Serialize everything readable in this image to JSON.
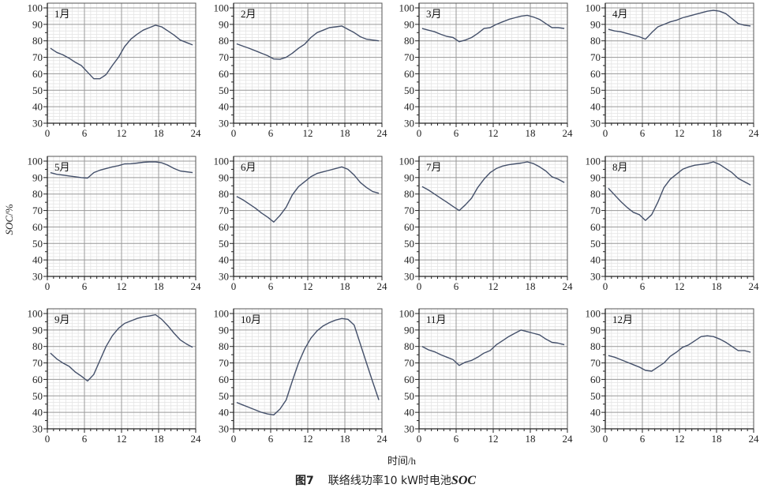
{
  "figure": {
    "xlabel": "时间/h",
    "ylabel_italic": "SOC",
    "ylabel_unit": "/%",
    "caption_number": "图7",
    "caption_text": "联络线功率10 kW时电池",
    "caption_soc": "SOC",
    "line_color": "#44506a"
  },
  "chart_data": [
    {
      "type": "line",
      "title": "1月",
      "xlim": [
        0,
        24
      ],
      "ylim": [
        30,
        100
      ],
      "xticks": [
        0,
        6,
        12,
        18,
        24
      ],
      "yticks": [
        30,
        40,
        50,
        60,
        70,
        80,
        90,
        100
      ],
      "grid": true,
      "x": [
        0.5,
        1.5,
        2.5,
        3.5,
        4.5,
        5.5,
        6.5,
        7.5,
        8.5,
        9.5,
        10.5,
        11.5,
        12.5,
        13.5,
        14.5,
        15.5,
        16.5,
        17.5,
        18.5,
        19.5,
        20.5,
        21.5,
        22.5,
        23.5
      ],
      "values": [
        75.5,
        73,
        71.5,
        69.5,
        67,
        65,
        61,
        57,
        57,
        59.5,
        65,
        70,
        76.5,
        81,
        84,
        86.5,
        88,
        89.5,
        88.5,
        86,
        83.5,
        80.5,
        79,
        77.5
      ]
    },
    {
      "type": "line",
      "title": "2月",
      "xlim": [
        0,
        24
      ],
      "ylim": [
        30,
        100
      ],
      "xticks": [
        0,
        6,
        12,
        18,
        24
      ],
      "yticks": [
        30,
        40,
        50,
        60,
        70,
        80,
        90,
        100
      ],
      "grid": true,
      "x": [
        0.5,
        1.5,
        2.5,
        3.5,
        4.5,
        5.5,
        6.5,
        7.5,
        8.5,
        9.5,
        10.5,
        11.5,
        12.5,
        13.5,
        14.5,
        15.5,
        16.5,
        17.5,
        18.5,
        19.5,
        20.5,
        21.5,
        22.5,
        23.5
      ],
      "values": [
        78.2,
        76.8,
        75.5,
        74,
        72.5,
        71,
        69,
        68.8,
        70,
        72.5,
        75.5,
        78,
        82,
        85,
        86.5,
        88,
        88.5,
        89,
        87,
        85,
        82.5,
        81,
        80.5,
        80
      ]
    },
    {
      "type": "line",
      "title": "3月",
      "xlim": [
        0,
        24
      ],
      "ylim": [
        30,
        100
      ],
      "xticks": [
        0,
        6,
        12,
        18,
        24
      ],
      "yticks": [
        30,
        40,
        50,
        60,
        70,
        80,
        90,
        100
      ],
      "grid": true,
      "x": [
        0.5,
        1.5,
        2.5,
        3.5,
        4.5,
        5.5,
        6.5,
        7.5,
        8.5,
        9.5,
        10.5,
        11.5,
        12.5,
        13.5,
        14.5,
        15.5,
        16.5,
        17.5,
        18.5,
        19.5,
        20.5,
        21.5,
        22.5,
        23.5
      ],
      "values": [
        87.5,
        86.5,
        85.5,
        84,
        82.7,
        82,
        79.5,
        80.5,
        82,
        84.5,
        87.5,
        88,
        90,
        91.5,
        93,
        94,
        95,
        95.5,
        94.5,
        93,
        90.5,
        88,
        88,
        87.5
      ]
    },
    {
      "type": "line",
      "title": "4月",
      "xlim": [
        0,
        24
      ],
      "ylim": [
        30,
        100
      ],
      "xticks": [
        0,
        6,
        12,
        18,
        24
      ],
      "yticks": [
        30,
        40,
        50,
        60,
        70,
        80,
        90,
        100
      ],
      "grid": true,
      "x": [
        0.5,
        1.5,
        2.5,
        3.5,
        4.5,
        5.5,
        6.5,
        7.5,
        8.5,
        9.5,
        10.5,
        11.5,
        12.5,
        13.5,
        14.5,
        15.5,
        16.5,
        17.5,
        18.5,
        19.5,
        20.5,
        21.5,
        22.5,
        23.5
      ],
      "values": [
        87,
        86,
        85.5,
        84.5,
        83.5,
        82.5,
        81,
        85,
        88.5,
        90,
        91.5,
        92.5,
        94,
        95,
        96,
        97,
        98,
        98.5,
        98,
        96.5,
        93.5,
        90.5,
        89.5,
        89
      ]
    },
    {
      "type": "line",
      "title": "5月",
      "xlim": [
        0,
        24
      ],
      "ylim": [
        30,
        100
      ],
      "xticks": [
        0,
        6,
        12,
        18,
        24
      ],
      "yticks": [
        30,
        40,
        50,
        60,
        70,
        80,
        90,
        100
      ],
      "grid": true,
      "x": [
        0.5,
        1.5,
        2.5,
        3.5,
        4.5,
        5.5,
        6.5,
        7.5,
        8.5,
        9.5,
        10.5,
        11.5,
        12.5,
        13.5,
        14.5,
        15.5,
        16.5,
        17.5,
        18.5,
        19.5,
        20.5,
        21.5,
        22.5,
        23.5
      ],
      "values": [
        93,
        92,
        91.5,
        91,
        90.5,
        90,
        89.7,
        93,
        94.5,
        95.5,
        96.5,
        97.2,
        98.3,
        98.4,
        98.8,
        99.3,
        99.5,
        99.5,
        99,
        97.5,
        95.5,
        94,
        93.5,
        93
      ]
    },
    {
      "type": "line",
      "title": "6月",
      "xlim": [
        0,
        24
      ],
      "ylim": [
        30,
        100
      ],
      "xticks": [
        0,
        6,
        12,
        18,
        24
      ],
      "yticks": [
        30,
        40,
        50,
        60,
        70,
        80,
        90,
        100
      ],
      "grid": true,
      "x": [
        0.5,
        1.5,
        2.5,
        3.5,
        4.5,
        5.5,
        6.5,
        7.5,
        8.5,
        9.5,
        10.5,
        11.5,
        12.5,
        13.5,
        14.5,
        15.5,
        16.5,
        17.5,
        18.5,
        19.5,
        20.5,
        21.5,
        22.5,
        23.5
      ],
      "values": [
        78.5,
        76.5,
        74,
        71.5,
        68.5,
        66,
        63,
        67,
        72,
        79.5,
        84.5,
        87.5,
        90.5,
        92.5,
        93.5,
        94.5,
        95.5,
        96.5,
        95,
        91.5,
        87,
        84,
        81.5,
        80.5
      ]
    },
    {
      "type": "line",
      "title": "7月",
      "xlim": [
        0,
        24
      ],
      "ylim": [
        30,
        100
      ],
      "xticks": [
        0,
        6,
        12,
        18,
        24
      ],
      "yticks": [
        30,
        40,
        50,
        60,
        70,
        80,
        90,
        100
      ],
      "grid": true,
      "x": [
        0.5,
        1.5,
        2.5,
        3.5,
        4.5,
        5.5,
        6.5,
        7.5,
        8.5,
        9.5,
        10.5,
        11.5,
        12.5,
        13.5,
        14.5,
        15.5,
        16.5,
        17.5,
        18.5,
        19.5,
        20.5,
        21.5,
        22.5,
        23.5
      ],
      "values": [
        84.5,
        82.5,
        80,
        77.5,
        75,
        72.5,
        70,
        73.5,
        77.5,
        84,
        89,
        93,
        95.5,
        97,
        97.8,
        98.3,
        98.8,
        99.5,
        98.5,
        96.5,
        94,
        90.5,
        89,
        87
      ]
    },
    {
      "type": "line",
      "title": "8月",
      "xlim": [
        0,
        24
      ],
      "ylim": [
        30,
        100
      ],
      "xticks": [
        0,
        6,
        12,
        18,
        24
      ],
      "yticks": [
        30,
        40,
        50,
        60,
        70,
        80,
        90,
        100
      ],
      "grid": true,
      "x": [
        0.5,
        1.5,
        2.5,
        3.5,
        4.5,
        5.5,
        6.5,
        7.5,
        8.5,
        9.5,
        10.5,
        11.5,
        12.5,
        13.5,
        14.5,
        15.5,
        16.5,
        17.5,
        18.5,
        19.5,
        20.5,
        21.5,
        22.5,
        23.5
      ],
      "values": [
        83.5,
        79.5,
        75.5,
        72,
        69,
        67.5,
        64,
        67.5,
        75,
        84,
        89,
        92,
        95,
        96.5,
        97.5,
        98,
        98.5,
        99.5,
        98,
        95.5,
        93,
        89.5,
        87.5,
        85.5
      ]
    },
    {
      "type": "line",
      "title": "9月",
      "xlim": [
        0,
        24
      ],
      "ylim": [
        30,
        100
      ],
      "xticks": [
        0,
        6,
        12,
        18,
        24
      ],
      "yticks": [
        30,
        40,
        50,
        60,
        70,
        80,
        90,
        100
      ],
      "grid": true,
      "x": [
        0.5,
        1.5,
        2.5,
        3.5,
        4.5,
        5.5,
        6.5,
        7.5,
        8.5,
        9.5,
        10.5,
        11.5,
        12.5,
        13.5,
        14.5,
        15.5,
        16.5,
        17.5,
        18.5,
        19.5,
        20.5,
        21.5,
        22.5,
        23.5
      ],
      "values": [
        76,
        72.5,
        70,
        68,
        64.5,
        62,
        59,
        63,
        71.5,
        80,
        86.5,
        91,
        94,
        95.5,
        97,
        98,
        98.5,
        99.3,
        96.5,
        92.5,
        88,
        84,
        81.5,
        79.5
      ]
    },
    {
      "type": "line",
      "title": "10月",
      "xlim": [
        0,
        24
      ],
      "ylim": [
        30,
        100
      ],
      "xticks": [
        0,
        6,
        12,
        18,
        24
      ],
      "yticks": [
        30,
        40,
        50,
        60,
        70,
        80,
        90,
        100
      ],
      "grid": true,
      "x": [
        0.5,
        1.5,
        2.5,
        3.5,
        4.5,
        5.5,
        6.5,
        7.5,
        8.5,
        9.5,
        10.5,
        11.5,
        12.5,
        13.5,
        14.5,
        15.5,
        16.5,
        17.5,
        18.5,
        19.5,
        20.5,
        21.5,
        22.5,
        23.5
      ],
      "values": [
        46,
        44.5,
        43,
        41.5,
        40,
        39,
        38.5,
        42,
        47.5,
        59,
        70,
        78.5,
        85,
        89.5,
        92.5,
        94.5,
        96,
        97,
        96.5,
        93,
        81.5,
        70,
        58.5,
        47.5
      ]
    },
    {
      "type": "line",
      "title": "11月",
      "xlim": [
        0,
        24
      ],
      "ylim": [
        30,
        100
      ],
      "xticks": [
        0,
        6,
        12,
        18,
        24
      ],
      "yticks": [
        30,
        40,
        50,
        60,
        70,
        80,
        90,
        100
      ],
      "grid": true,
      "x": [
        0.5,
        1.5,
        2.5,
        3.5,
        4.5,
        5.5,
        6.5,
        7.5,
        8.5,
        9.5,
        10.5,
        11.5,
        12.5,
        13.5,
        14.5,
        15.5,
        16.5,
        17.5,
        18.5,
        19.5,
        20.5,
        21.5,
        22.5,
        23.5
      ],
      "values": [
        80,
        78,
        76.8,
        75,
        73.5,
        72,
        68.5,
        70.5,
        71.5,
        73.5,
        76,
        77.5,
        81,
        83.5,
        86,
        88,
        90,
        89,
        88,
        87,
        84.5,
        82.5,
        82,
        81
      ]
    },
    {
      "type": "line",
      "title": "12月",
      "xlim": [
        0,
        24
      ],
      "ylim": [
        30,
        100
      ],
      "xticks": [
        0,
        6,
        12,
        18,
        24
      ],
      "yticks": [
        30,
        40,
        50,
        60,
        70,
        80,
        90,
        100
      ],
      "grid": true,
      "x": [
        0.5,
        1.5,
        2.5,
        3.5,
        4.5,
        5.5,
        6.5,
        7.5,
        8.5,
        9.5,
        10.5,
        11.5,
        12.5,
        13.5,
        14.5,
        15.5,
        16.5,
        17.5,
        18.5,
        19.5,
        20.5,
        21.5,
        22.5,
        23.5
      ],
      "values": [
        74.5,
        73.5,
        72,
        70.5,
        69,
        67.5,
        65.5,
        65,
        67.5,
        70,
        74,
        76.5,
        79.5,
        81,
        83.5,
        86,
        86.5,
        86,
        84.5,
        82.5,
        80,
        77.5,
        77.5,
        76.5
      ]
    }
  ]
}
